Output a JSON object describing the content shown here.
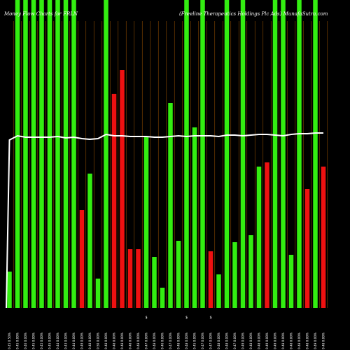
{
  "title_left": "Money Flow Charts for FRLN",
  "title_right": "(Freeline Therapeutics Holdings Plc Ads) MunafaSutra.com",
  "chart_data": {
    "type": "bar",
    "title": "Money Flow Charts for FRLN",
    "ylim": [
      0,
      440
    ],
    "colors": {
      "up": "#33ee11",
      "down": "#ee1111",
      "line": "#ffffff",
      "grid": "#8a4a00",
      "background": "#000000"
    },
    "categories": [
      "0.45 0.50%",
      "0.45 0.00%",
      "0.46 0.00%",
      "0.45 0.00%",
      "0.45 0.00%",
      "0.45 0.00%",
      "0.44 0.00%",
      "0.43 0.00%",
      "0.44 0.00%",
      "0.49 0.00%",
      "0.48 0.00%",
      "0.50 0.00%",
      "0.48 0.00%",
      "0.48 0.00%",
      "0.48 0.00%",
      "0.48 0.00%",
      "0.48 0.00%",
      "0.47 0.00%",
      "0.48 0.00%",
      "0.46 0.00%",
      "0.47 0.00%",
      "0.48 0.00%",
      "0.48 0.00%",
      "0.45 0.00%",
      "0.47 0.00%",
      "0.47 0.00%",
      "0.48 0.00%",
      "0.48 0.00%",
      "0.47 0.00%",
      "0.49 0.00%",
      "0.48 0.00%",
      "0.48 0.00%",
      "0.49 0.00%",
      "0.49 0.00%",
      "0.48 0.00%",
      "0.48 0.00%",
      "0.48 0.00%",
      "0.48 0.00%",
      "0.49 0.00%",
      "0.48 0.00%"
    ],
    "series": [
      {
        "values": [
          52,
          440,
          440,
          440,
          440,
          440,
          440,
          440,
          440,
          140,
          192,
          42,
          440,
          306,
          340,
          84,
          84,
          245,
          73,
          29,
          293,
          96,
          440,
          258,
          440,
          81,
          48,
          440,
          94,
          440,
          104,
          202,
          208,
          440,
          440,
          76,
          440,
          170,
          440,
          202
        ],
        "directions": [
          "up",
          "up",
          "up",
          "up",
          "up",
          "up",
          "up",
          "up",
          "up",
          "down",
          "up",
          "up",
          "up",
          "down",
          "down",
          "down",
          "down",
          "up",
          "up",
          "up",
          "up",
          "up",
          "up",
          "up",
          "up",
          "down",
          "up",
          "up",
          "up",
          "up",
          "up",
          "up",
          "down",
          "up",
          "up",
          "up",
          "up",
          "down",
          "up",
          "down"
        ]
      }
    ],
    "line_values": [
      240,
      246,
      244,
      244,
      244,
      244,
      245,
      243,
      244,
      242,
      241,
      242,
      248,
      246,
      246,
      245,
      245,
      245,
      244,
      244,
      245,
      246,
      245,
      246,
      246,
      246,
      245,
      247,
      247,
      246,
      247,
      248,
      248,
      247,
      246,
      248,
      249,
      249,
      250,
      250
    ],
    "markers": [
      {
        "index": 17,
        "text": "$"
      },
      {
        "index": 22,
        "text": "$"
      },
      {
        "index": 25,
        "text": "$"
      }
    ]
  }
}
